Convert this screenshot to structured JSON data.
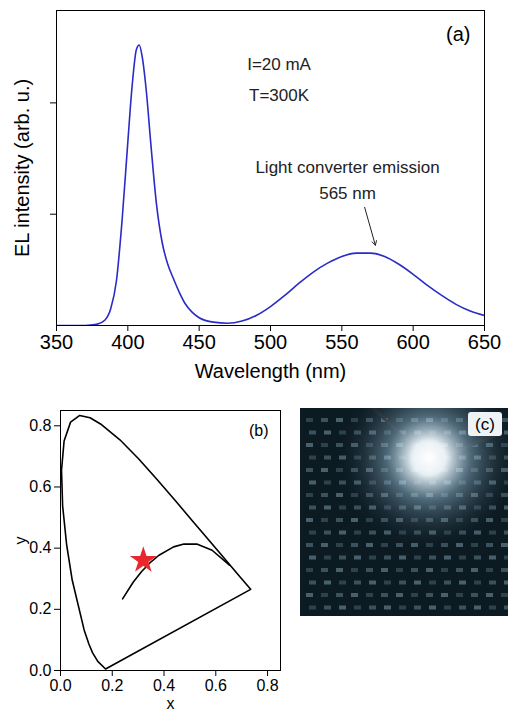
{
  "chart_data": [
    {
      "type": "line",
      "title": "(a)",
      "x_label": "Wavelength (nm)",
      "y_label": "EL intensity (arb. u.)",
      "annotations": [
        "I=20 mA",
        "T=300K",
        "Light converter emission",
        "565 nm"
      ],
      "xlim": [
        350,
        650
      ],
      "xticks": [
        350,
        400,
        450,
        500,
        550,
        600,
        650
      ],
      "ylim": [
        0,
        2.83
      ],
      "yticks": [
        1,
        2
      ],
      "tick_labels": "x",
      "color": "#2b2bc8",
      "x": [
        350,
        370,
        378,
        384,
        388,
        392,
        396,
        400,
        403,
        406,
        408,
        410,
        413,
        416,
        420,
        424,
        428,
        432,
        436,
        440,
        445,
        450,
        460,
        470,
        480,
        490,
        500,
        510,
        520,
        530,
        540,
        550,
        560,
        570,
        580,
        590,
        600,
        610,
        620,
        630,
        640,
        650
      ],
      "values": [
        0,
        0,
        0.01,
        0.05,
        0.15,
        0.4,
        0.95,
        1.65,
        2.15,
        2.48,
        2.52,
        2.42,
        2.1,
        1.65,
        1.1,
        0.75,
        0.55,
        0.42,
        0.3,
        0.2,
        0.12,
        0.07,
        0.03,
        0.02,
        0.04,
        0.09,
        0.17,
        0.27,
        0.38,
        0.48,
        0.56,
        0.62,
        0.65,
        0.65,
        0.62,
        0.55,
        0.46,
        0.36,
        0.27,
        0.19,
        0.13,
        0.09
      ]
    },
    {
      "type": "scatter",
      "title": "(b)",
      "x_label": "x",
      "y_label": "y",
      "xlim": [
        0,
        0.85
      ],
      "xticks": [
        {
          "value": 0,
          "label": "0.0"
        },
        {
          "value": 0.2,
          "label": "0.2"
        },
        {
          "value": 0.4,
          "label": "0.4"
        },
        {
          "value": 0.6,
          "label": "0.6"
        },
        {
          "value": 0.8,
          "label": "0.8"
        }
      ],
      "ylim": [
        0,
        0.85
      ],
      "yticks": [
        {
          "value": 0,
          "label": "0.0"
        },
        {
          "value": 0.2,
          "label": "0.2"
        },
        {
          "value": 0.4,
          "label": "0.4"
        },
        {
          "value": 0.6,
          "label": "0.6"
        },
        {
          "value": 0.8,
          "label": "0.8"
        }
      ],
      "series": [
        {
          "type": "line",
          "color": "#000000",
          "x": [
            0.1741,
            0.144,
            0.1241,
            0.1096,
            0.0913,
            0.0454,
            0.0235,
            0.0082,
            0.0039,
            0.0139,
            0.0389,
            0.0743,
            0.1142,
            0.1547,
            0.2296,
            0.3016,
            0.3731,
            0.4441,
            0.5125,
            0.5752,
            0.627,
            0.6915,
            0.7347,
            0.1741
          ],
          "values": [
            0.005,
            0.0297,
            0.0578,
            0.0868,
            0.1327,
            0.295,
            0.4127,
            0.5384,
            0.6548,
            0.7502,
            0.812,
            0.8338,
            0.8262,
            0.8059,
            0.7543,
            0.6923,
            0.6245,
            0.5547,
            0.4866,
            0.4242,
            0.3725,
            0.3083,
            0.2653,
            0.005
          ]
        },
        {
          "type": "line",
          "color": "#000000",
          "x": [
            0.2399,
            0.2807,
            0.3135,
            0.3451,
            0.3805,
            0.4369,
            0.477,
            0.5267,
            0.5857,
            0.6528
          ],
          "values": [
            0.2341,
            0.2884,
            0.3237,
            0.3516,
            0.3768,
            0.4041,
            0.4137,
            0.4133,
            0.3931,
            0.3444
          ]
        },
        {
          "type": "scatter",
          "marker": "star",
          "color": "#e8282d",
          "x": [
            0.32
          ],
          "values": [
            0.36
          ]
        }
      ]
    },
    {
      "type": "image",
      "title": "(c)"
    }
  ]
}
